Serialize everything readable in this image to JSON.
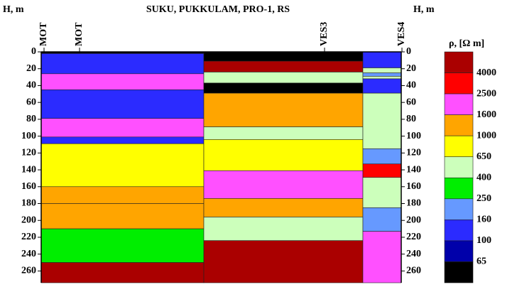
{
  "chart_data": {
    "type": "geo-section",
    "title": "SUKU, PUKKULAM, PRO-1, RS",
    "y_label_left": "H, m",
    "y_label_right": "H, m",
    "ylim": [
      0,
      274
    ],
    "yticks": [
      0,
      20,
      40,
      60,
      80,
      100,
      120,
      140,
      160,
      180,
      200,
      220,
      240,
      260
    ],
    "stations": [
      "MOT",
      "MOT",
      "VES3",
      "VES4"
    ],
    "columns": [
      {
        "layers": [
          {
            "top": 0,
            "bottom": 2,
            "color": "#000000"
          },
          {
            "top": 2,
            "bottom": 26,
            "color": "#2b2bff"
          },
          {
            "top": 26,
            "bottom": 45,
            "color": "#ff50ff"
          },
          {
            "top": 45,
            "bottom": 79,
            "color": "#2b2bff"
          },
          {
            "top": 79,
            "bottom": 101,
            "color": "#ff50ff"
          },
          {
            "top": 101,
            "bottom": 109,
            "color": "#2b2bff"
          },
          {
            "top": 109,
            "bottom": 160,
            "color": "#ffff00"
          },
          {
            "top": 160,
            "bottom": 180,
            "color": "#ffa500"
          },
          {
            "top": 180,
            "bottom": 210,
            "color": "#ffa500"
          },
          {
            "top": 210,
            "bottom": 250,
            "color": "#00ee00"
          },
          {
            "top": 250,
            "bottom": 274,
            "color": "#aa0000"
          }
        ]
      },
      {
        "layers": [
          {
            "top": 0,
            "bottom": 11,
            "color": "#000000"
          },
          {
            "top": 11,
            "bottom": 24,
            "color": "#aa0000"
          },
          {
            "top": 24,
            "bottom": 37,
            "color": "#ccffbb"
          },
          {
            "top": 37,
            "bottom": 49,
            "color": "#000000"
          },
          {
            "top": 49,
            "bottom": 89,
            "color": "#ffa500"
          },
          {
            "top": 89,
            "bottom": 104,
            "color": "#ccffbb"
          },
          {
            "top": 104,
            "bottom": 141,
            "color": "#ffff00"
          },
          {
            "top": 141,
            "bottom": 174,
            "color": "#ff50ff"
          },
          {
            "top": 174,
            "bottom": 196,
            "color": "#ffa500"
          },
          {
            "top": 196,
            "bottom": 224,
            "color": "#ccffbb"
          },
          {
            "top": 224,
            "bottom": 274,
            "color": "#aa0000"
          }
        ]
      },
      {
        "layers": [
          {
            "top": 0,
            "bottom": 19,
            "color": "#2b2bff"
          },
          {
            "top": 19,
            "bottom": 25,
            "color": "#ccffbb"
          },
          {
            "top": 25,
            "bottom": 29,
            "color": "#6699ff"
          },
          {
            "top": 29,
            "bottom": 32,
            "color": "#ccffbb"
          },
          {
            "top": 32,
            "bottom": 49,
            "color": "#2b2bff"
          },
          {
            "top": 49,
            "bottom": 115,
            "color": "#ccffbb"
          },
          {
            "top": 115,
            "bottom": 133,
            "color": "#6699ff"
          },
          {
            "top": 133,
            "bottom": 149,
            "color": "#ff0000"
          },
          {
            "top": 149,
            "bottom": 185,
            "color": "#ccffbb"
          },
          {
            "top": 185,
            "bottom": 213,
            "color": "#6699ff"
          },
          {
            "top": 213,
            "bottom": 274,
            "color": "#ff50ff"
          }
        ]
      }
    ],
    "legend": {
      "title": "ρ, [Ω m]",
      "colors": [
        "#aa0000",
        "#ff0000",
        "#ff50ff",
        "#ffa500",
        "#ffff00",
        "#ccffbb",
        "#00ee00",
        "#6699ff",
        "#2b2bff",
        "#0000aa",
        "#000000"
      ],
      "labels": [
        4000,
        2500,
        1600,
        1000,
        650,
        400,
        250,
        160,
        100,
        65
      ]
    }
  }
}
